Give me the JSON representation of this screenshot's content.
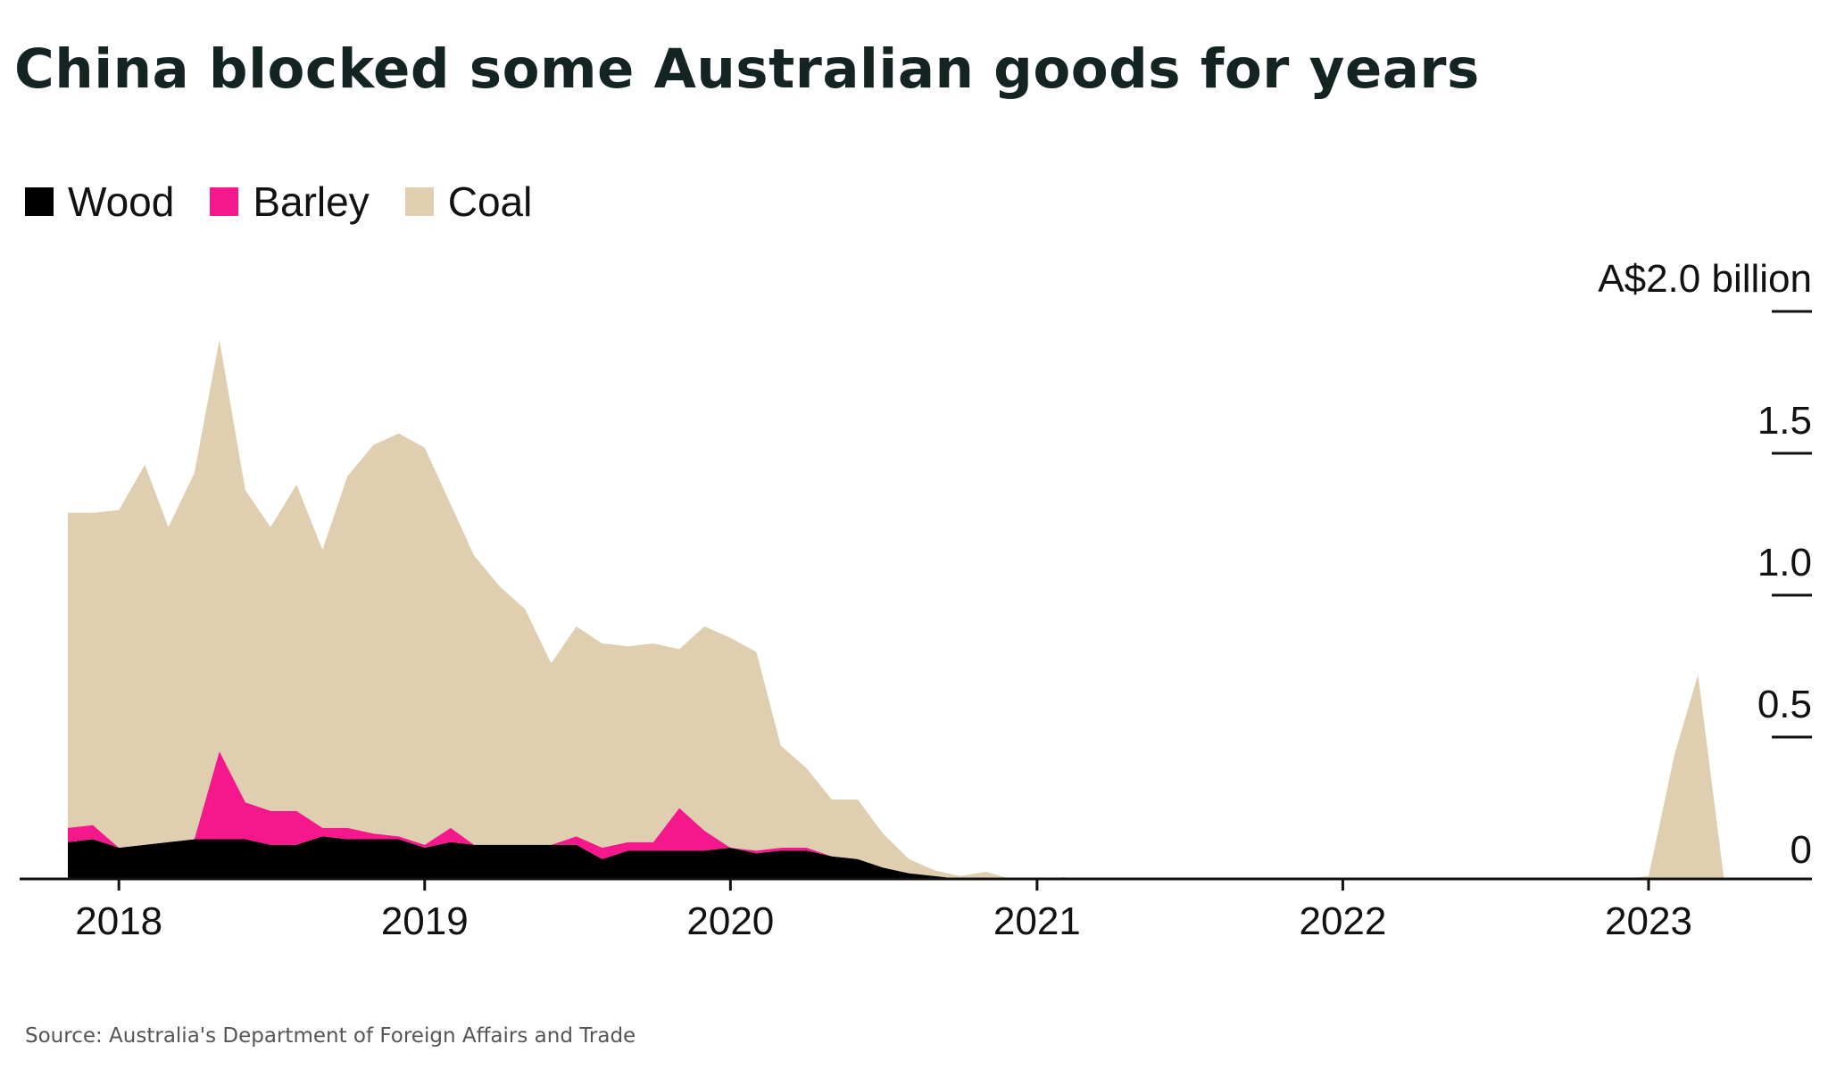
{
  "title": "China blocked some Australian goods for years",
  "source": "Source: Australia's Department of Foreign Affairs and Trade",
  "legend": [
    {
      "label": "Wood",
      "color": "#000000"
    },
    {
      "label": "Barley",
      "color": "#f5178b"
    },
    {
      "label": "Coal",
      "color": "#dfcfb0"
    }
  ],
  "chart_data": {
    "type": "area",
    "stacked": true,
    "title": "China blocked some Australian goods for years",
    "ylabel": "A$2.0 billion",
    "ylim": [
      0,
      2.0
    ],
    "y_ticks": [
      {
        "value": 2.0,
        "label": "A$2.0 billion"
      },
      {
        "value": 1.5,
        "label": "1.5"
      },
      {
        "value": 1.0,
        "label": "1.0"
      },
      {
        "value": 0.5,
        "label": "0.5"
      },
      {
        "value": 0,
        "label": "0"
      }
    ],
    "x_ticks": [
      {
        "value": "2018-01-01",
        "label": "2018"
      },
      {
        "value": "2019-01-01",
        "label": "2019"
      },
      {
        "value": "2020-01-01",
        "label": "2020"
      },
      {
        "value": "2021-01-01",
        "label": "2021"
      },
      {
        "value": "2022-01-01",
        "label": "2022"
      },
      {
        "value": "2023-01-01",
        "label": "2023"
      }
    ],
    "x_range": [
      "2017-10-15",
      "2023-07-15"
    ],
    "x": [
      "2017-11-01",
      "2017-12-01",
      "2018-01-01",
      "2018-02-01",
      "2018-03-01",
      "2018-04-01",
      "2018-05-01",
      "2018-06-01",
      "2018-07-01",
      "2018-08-01",
      "2018-09-01",
      "2018-10-01",
      "2018-11-01",
      "2018-12-01",
      "2019-01-01",
      "2019-02-01",
      "2019-03-01",
      "2019-04-01",
      "2019-05-01",
      "2019-06-01",
      "2019-07-01",
      "2019-08-01",
      "2019-09-01",
      "2019-10-01",
      "2019-11-01",
      "2019-12-01",
      "2020-01-01",
      "2020-02-01",
      "2020-03-01",
      "2020-04-01",
      "2020-05-01",
      "2020-06-01",
      "2020-07-01",
      "2020-08-01",
      "2020-09-01",
      "2020-10-01",
      "2020-11-01",
      "2020-12-01",
      "2021-01-01",
      "2021-02-01",
      "2021-03-01",
      "2021-04-01",
      "2021-05-01",
      "2021-06-01",
      "2021-07-01",
      "2022-01-01",
      "2022-12-01",
      "2023-01-01",
      "2023-02-01",
      "2023-03-01",
      "2023-04-01"
    ],
    "series": [
      {
        "name": "Wood",
        "color": "#000000",
        "values": [
          0.13,
          0.14,
          0.11,
          0.12,
          0.13,
          0.14,
          0.14,
          0.14,
          0.12,
          0.12,
          0.15,
          0.14,
          0.14,
          0.14,
          0.11,
          0.13,
          0.12,
          0.12,
          0.12,
          0.12,
          0.12,
          0.07,
          0.1,
          0.1,
          0.1,
          0.1,
          0.11,
          0.09,
          0.1,
          0.1,
          0.08,
          0.07,
          0.04,
          0.02,
          0.01,
          0.0,
          0.0,
          0.0,
          0.0,
          0.005,
          0.003,
          0.0,
          0.0,
          0.0,
          0.0,
          0.0,
          0.0,
          0.0,
          0.0,
          0.0,
          0.0
        ]
      },
      {
        "name": "Barley",
        "color": "#f5178b",
        "values": [
          0.05,
          0.05,
          0.0,
          0.0,
          0.0,
          0.0,
          0.31,
          0.13,
          0.12,
          0.12,
          0.03,
          0.04,
          0.02,
          0.01,
          0.01,
          0.05,
          0.0,
          0.0,
          0.0,
          0.0,
          0.03,
          0.04,
          0.03,
          0.03,
          0.15,
          0.07,
          0.0,
          0.01,
          0.01,
          0.01,
          0.0,
          0.0,
          0.0,
          0.0,
          0.0,
          0.0,
          0.0,
          0.0,
          0.0,
          0.0,
          0.0,
          0.0,
          0.0,
          0.0,
          0.0,
          0.0,
          0.0,
          0.0,
          0.0,
          0.0,
          0.0
        ]
      },
      {
        "name": "Coal",
        "color": "#dfcfb0",
        "values": [
          1.11,
          1.1,
          1.19,
          1.34,
          1.11,
          1.29,
          1.45,
          1.1,
          1.0,
          1.15,
          0.98,
          1.24,
          1.37,
          1.42,
          1.4,
          1.14,
          1.02,
          0.91,
          0.83,
          0.64,
          0.74,
          0.72,
          0.69,
          0.7,
          0.56,
          0.72,
          0.74,
          0.7,
          0.36,
          0.28,
          0.2,
          0.21,
          0.12,
          0.05,
          0.02,
          0.01,
          0.025,
          0.0,
          0.002,
          0.0,
          0.0,
          0.0,
          0.0,
          0.0,
          0.0,
          0.0,
          0.0,
          0.01,
          0.44,
          0.72,
          0.0
        ]
      }
    ]
  }
}
